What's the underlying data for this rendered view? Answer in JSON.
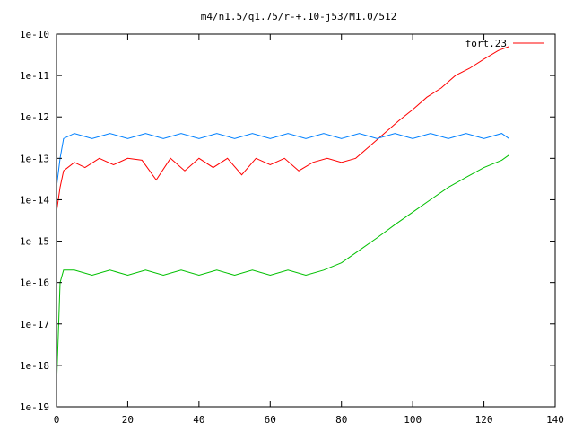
{
  "chart_data": {
    "type": "line",
    "title": "m4/n1.5/q1.75/r-+.10-j53/M1.0/512",
    "xlabel": "",
    "ylabel": "",
    "xlim": [
      0,
      140
    ],
    "ylim": [
      1e-19,
      1e-10
    ],
    "y_scale": "log",
    "grid": false,
    "legend": "top-right",
    "x_ticks": [
      0,
      20,
      40,
      60,
      80,
      100,
      120,
      140
    ],
    "x_tick_labels": [
      "0",
      "20",
      "40",
      "60",
      "80",
      "100",
      "120",
      "140"
    ],
    "y_ticks": [
      1e-19,
      1e-18,
      1e-17,
      1e-16,
      1e-15,
      1e-14,
      1e-13,
      1e-12,
      1e-11,
      1e-10
    ],
    "y_tick_labels": [
      "1e-19",
      "1e-18",
      "1e-17",
      "1e-16",
      "1e-15",
      "1e-14",
      "1e-13",
      "1e-12",
      "1e-11",
      "1e-10"
    ],
    "series": [
      {
        "name": "fort.23",
        "color": "#ff0000",
        "x": [
          0,
          1,
          2,
          5,
          8,
          12,
          16,
          20,
          24,
          28,
          32,
          36,
          40,
          44,
          48,
          52,
          56,
          60,
          64,
          68,
          72,
          76,
          80,
          84,
          88,
          92,
          96,
          100,
          104,
          108,
          112,
          116,
          120,
          124,
          127
        ],
        "y": [
          5e-15,
          2e-14,
          5e-14,
          8e-14,
          6e-14,
          1e-13,
          7e-14,
          1e-13,
          9e-14,
          3e-14,
          1e-13,
          5e-14,
          1e-13,
          6e-14,
          1e-13,
          4e-14,
          1e-13,
          7e-14,
          1e-13,
          5e-14,
          8e-14,
          1e-13,
          8e-14,
          1e-13,
          2e-13,
          4e-13,
          8e-13,
          1.5e-12,
          3e-12,
          5e-12,
          1e-11,
          1.5e-11,
          2.5e-11,
          4e-11,
          5e-11
        ]
      },
      {
        "name": "",
        "color": "#0080ff",
        "x": [
          0,
          1,
          2,
          5,
          10,
          15,
          20,
          25,
          30,
          35,
          40,
          45,
          50,
          55,
          60,
          65,
          70,
          75,
          80,
          85,
          90,
          95,
          100,
          105,
          110,
          115,
          120,
          125,
          127
        ],
        "y": [
          2e-14,
          1e-13,
          3e-13,
          4e-13,
          3e-13,
          4e-13,
          3e-13,
          4e-13,
          3e-13,
          4e-13,
          3e-13,
          4e-13,
          3e-13,
          4e-13,
          3e-13,
          4e-13,
          3e-13,
          4e-13,
          3e-13,
          4e-13,
          3e-13,
          4e-13,
          3e-13,
          4e-13,
          3e-13,
          4e-13,
          3e-13,
          4e-13,
          3e-13
        ]
      },
      {
        "name": "",
        "color": "#00c000",
        "x": [
          0,
          1,
          2,
          5,
          10,
          15,
          20,
          25,
          30,
          35,
          40,
          45,
          50,
          55,
          60,
          65,
          70,
          75,
          80,
          85,
          90,
          95,
          100,
          105,
          110,
          115,
          120,
          125,
          127
        ],
        "y": [
          3e-19,
          1e-16,
          2e-16,
          2e-16,
          1.5e-16,
          2e-16,
          1.5e-16,
          2e-16,
          1.5e-16,
          2e-16,
          1.5e-16,
          2e-16,
          1.5e-16,
          2e-16,
          1.5e-16,
          2e-16,
          1.5e-16,
          2e-16,
          3e-16,
          6e-16,
          1.2e-15,
          2.5e-15,
          5e-15,
          1e-14,
          2e-14,
          3.5e-14,
          6e-14,
          9e-14,
          1.2e-13
        ]
      }
    ]
  }
}
